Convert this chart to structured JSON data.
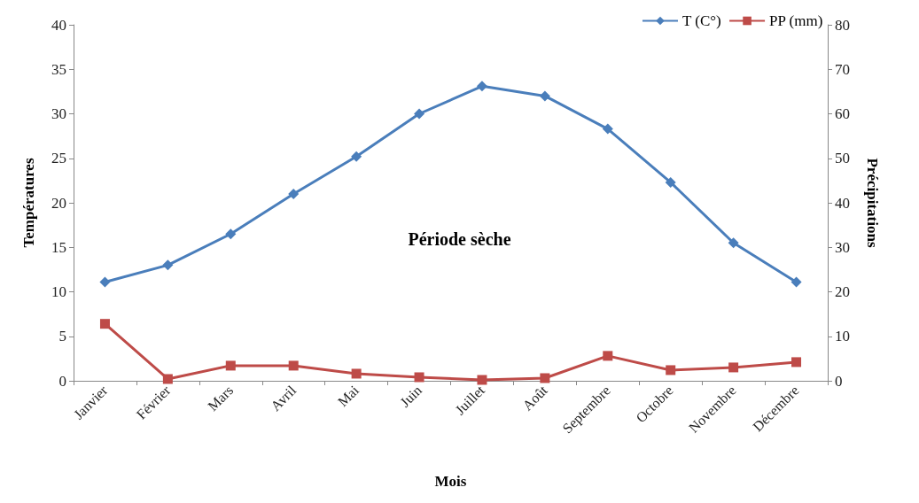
{
  "chart_data": {
    "type": "line",
    "xlabel": "Mois",
    "ylabel": "Températures",
    "y2label": "Précipitations",
    "categories": [
      "Janvier",
      "Février",
      "Mars",
      "Avril",
      "Mai",
      "Juin",
      "Juillet",
      "Août",
      "Septembre",
      "Octobre",
      "Novembre",
      "Décembre"
    ],
    "series": [
      {
        "name": "T (C°)",
        "color": "#4a7ebb",
        "marker": "diamond",
        "values": [
          11.1,
          13.0,
          16.5,
          21.0,
          25.2,
          30.0,
          33.1,
          32.0,
          28.3,
          22.3,
          15.5,
          11.1
        ]
      },
      {
        "name": "PP (mm)",
        "color": "#be4b48",
        "marker": "square",
        "axis": "y2",
        "values": [
          12.8,
          0.4,
          3.4,
          3.4,
          1.6,
          0.8,
          0.2,
          0.6,
          5.6,
          2.4,
          3.0,
          4.2
        ]
      }
    ],
    "ylim": [
      0,
      40
    ],
    "yticks": [
      0,
      5,
      10,
      15,
      20,
      25,
      30,
      35,
      40
    ],
    "y2lim": [
      0,
      80
    ],
    "y2ticks": [
      0,
      10,
      20,
      30,
      40,
      50,
      60,
      70,
      80
    ],
    "annotations": [
      "Période sèche"
    ],
    "grid": false,
    "legend": "top right",
    "line_style": "solid"
  }
}
